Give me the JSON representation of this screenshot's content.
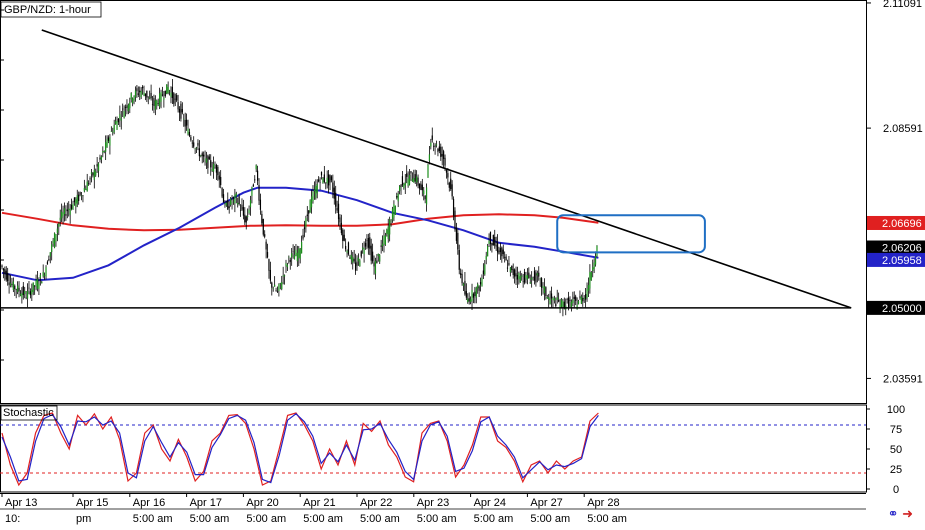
{
  "chart_data": [
    {
      "type": "line",
      "title": "GBP/NZD: 1-hour",
      "chart_kind": "candlestick",
      "ylim": [
        2.031,
        2.1115
      ],
      "price_ticks": [
        "2.11091",
        "2.08591",
        "2.03591"
      ],
      "x_ticks": [
        {
          "top": "Apr 13",
          "bottom": "10:",
          "i": 0
        },
        {
          "top": "Apr 15",
          "bottom": "pm",
          "i": 50
        },
        {
          "top": "Apr 16",
          "bottom": "5:00 am",
          "i": 90
        },
        {
          "top": "Apr 17",
          "bottom": "5:00 am",
          "i": 130
        },
        {
          "top": "Apr 20",
          "bottom": "5:00 am",
          "i": 170
        },
        {
          "top": "Apr 21",
          "bottom": "5:00 am",
          "i": 210
        },
        {
          "top": "Apr 22",
          "bottom": "5:00 am",
          "i": 250
        },
        {
          "top": "Apr 23",
          "bottom": "5:00 am",
          "i": 290
        },
        {
          "top": "Apr 24",
          "bottom": "5:00 am",
          "i": 330
        },
        {
          "top": "Apr 27",
          "bottom": "5:00 am",
          "i": 370
        },
        {
          "top": "Apr 28",
          "bottom": "5:00 am",
          "i": 410
        }
      ],
      "price_labels": [
        {
          "text": "2.06696",
          "value": 2.06696,
          "color": "#e02020"
        },
        {
          "text": "2.06206",
          "value": 2.06206,
          "color": "#000000"
        },
        {
          "text": "2.05958",
          "value": 2.05958,
          "color": "#2323c8"
        },
        {
          "text": "2.05000",
          "value": 2.05,
          "color": "#000000"
        }
      ],
      "trendline": {
        "start": {
          "i": 28,
          "price": 2.1055
        },
        "end": {
          "i": 598,
          "price": 2.05
        },
        "color": "#000000"
      },
      "support_line": {
        "price": 2.05,
        "end_i": 598,
        "color": "#000000"
      },
      "highlight_box": {
        "i0": 391,
        "i1": 495,
        "price_top": 2.0685,
        "price_bottom": 2.0611,
        "color": "#1f6fc4"
      },
      "sma_red": {
        "color": "#e02020",
        "points": [
          [
            0,
            2.069
          ],
          [
            25,
            2.0678
          ],
          [
            50,
            2.0665
          ],
          [
            75,
            2.0658
          ],
          [
            100,
            2.0655
          ],
          [
            125,
            2.0656
          ],
          [
            150,
            2.066
          ],
          [
            175,
            2.0664
          ],
          [
            200,
            2.0665
          ],
          [
            225,
            2.0664
          ],
          [
            250,
            2.0664
          ],
          [
            275,
            2.0667
          ],
          [
            300,
            2.0678
          ],
          [
            325,
            2.0685
          ],
          [
            350,
            2.0687
          ],
          [
            375,
            2.0685
          ],
          [
            395,
            2.068
          ],
          [
            405,
            2.0676
          ],
          [
            420,
            2.067
          ]
        ]
      },
      "sma_blue": {
        "color": "#2323c8",
        "points": [
          [
            0,
            2.057
          ],
          [
            25,
            2.0555
          ],
          [
            50,
            2.056
          ],
          [
            75,
            2.0585
          ],
          [
            100,
            2.0625
          ],
          [
            125,
            2.066
          ],
          [
            150,
            2.07
          ],
          [
            170,
            2.073
          ],
          [
            180,
            2.074
          ],
          [
            200,
            2.074
          ],
          [
            225,
            2.0734
          ],
          [
            250,
            2.0715
          ],
          [
            275,
            2.069
          ],
          [
            300,
            2.0675
          ],
          [
            325,
            2.0655
          ],
          [
            350,
            2.063
          ],
          [
            375,
            2.0622
          ],
          [
            400,
            2.061
          ],
          [
            420,
            2.06
          ]
        ]
      },
      "candle_path": [
        [
          0,
          2.0585
        ],
        [
          8,
          2.0545
        ],
        [
          18,
          2.0525
        ],
        [
          30,
          2.0565
        ],
        [
          42,
          2.068
        ],
        [
          55,
          2.072
        ],
        [
          68,
          2.078
        ],
        [
          80,
          2.0865
        ],
        [
          93,
          2.0925
        ],
        [
          100,
          2.0935
        ],
        [
          108,
          2.0905
        ],
        [
          118,
          2.094
        ],
        [
          126,
          2.0895
        ],
        [
          133,
          2.0845
        ],
        [
          143,
          2.0795
        ],
        [
          153,
          2.0775
        ],
        [
          158,
          2.07
        ],
        [
          166,
          2.072
        ],
        [
          173,
          2.067
        ],
        [
          180,
          2.078
        ],
        [
          183,
          2.0695
        ],
        [
          190,
          2.055
        ],
        [
          195,
          2.053
        ],
        [
          203,
          2.06
        ],
        [
          210,
          2.061
        ],
        [
          218,
          2.071
        ],
        [
          225,
          2.076
        ],
        [
          233,
          2.075
        ],
        [
          242,
          2.063
        ],
        [
          250,
          2.058
        ],
        [
          258,
          2.064
        ],
        [
          263,
          2.058
        ],
        [
          272,
          2.065
        ],
        [
          282,
          2.075
        ],
        [
          291,
          2.0765
        ],
        [
          299,
          2.072
        ],
        [
          303,
          2.084
        ],
        [
          312,
          2.08
        ],
        [
          318,
          2.072
        ],
        [
          323,
          2.058
        ],
        [
          328,
          2.0515
        ],
        [
          338,
          2.0545
        ],
        [
          344,
          2.064
        ],
        [
          352,
          2.061
        ],
        [
          360,
          2.057
        ],
        [
          368,
          2.056
        ],
        [
          378,
          2.056
        ],
        [
          386,
          2.0518
        ],
        [
          395,
          2.0508
        ],
        [
          405,
          2.051
        ],
        [
          412,
          2.0525
        ],
        [
          418,
          2.06
        ],
        [
          420,
          2.062
        ]
      ]
    },
    {
      "type": "line",
      "title": "Stochastic",
      "ylim": [
        0,
        100
      ],
      "y_ticks": [
        "100",
        "75",
        "50",
        "25",
        "0"
      ],
      "levels": [
        80,
        20
      ],
      "series": [
        {
          "color": "#e02020",
          "values": [
            70,
            30,
            5,
            20,
            70,
            92,
            95,
            70,
            50,
            92,
            80,
            94,
            75,
            90,
            62,
            10,
            20,
            70,
            80,
            50,
            35,
            62,
            40,
            10,
            22,
            60,
            70,
            92,
            93,
            82,
            50,
            5,
            10,
            50,
            92,
            95,
            80,
            60,
            25,
            50,
            30,
            60,
            30,
            82,
            72,
            85,
            55,
            40,
            15,
            9,
            70,
            82,
            85,
            60,
            15,
            30,
            55,
            90,
            90,
            60,
            52,
            35,
            9,
            30,
            35,
            20,
            35,
            25,
            35,
            40,
            85,
            95
          ]
        },
        {
          "color": "#2323c8",
          "values": [
            65,
            40,
            10,
            12,
            60,
            88,
            93,
            78,
            55,
            85,
            84,
            90,
            80,
            85,
            70,
            20,
            14,
            60,
            78,
            58,
            40,
            58,
            46,
            18,
            18,
            52,
            68,
            88,
            92,
            86,
            58,
            12,
            8,
            42,
            86,
            94,
            84,
            66,
            32,
            45,
            34,
            55,
            36,
            74,
            75,
            82,
            62,
            46,
            22,
            12,
            60,
            80,
            84,
            66,
            22,
            26,
            48,
            84,
            90,
            66,
            55,
            40,
            14,
            24,
            34,
            24,
            30,
            28,
            32,
            38,
            78,
            92
          ]
        }
      ]
    }
  ],
  "ui": {
    "title": "GBP/NZD: 1-hour",
    "stoch_label": "Stochastic",
    "icons": [
      "link-icon",
      "arrow-icon"
    ]
  }
}
